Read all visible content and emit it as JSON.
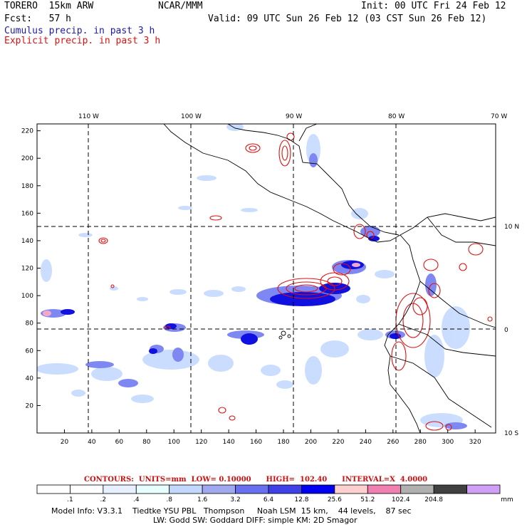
{
  "header": {
    "model": "TORERO  15km ARW",
    "center": "NCAR/MMM",
    "init": "Init: 00 UTC Fri 24 Feb 12",
    "fcst": "Fcst:   57 h",
    "valid": "Valid: 09 UTC Sun 26 Feb 12 (03 CST Sun 26 Feb 12)",
    "cumulus_label": "Cumulus precip. in past 3 h",
    "explicit_label": "Explicit precip. in past 3 h"
  },
  "map": {
    "lon_labels": [
      "110 W",
      "100 W",
      "90 W",
      "80 W",
      "70 W"
    ],
    "lat_labels": [
      "10 N",
      "0",
      "10 S"
    ],
    "x_ticks": [
      "20",
      "40",
      "60",
      "80",
      "100",
      "120",
      "140",
      "160",
      "180",
      "200",
      "220",
      "240",
      "260",
      "280",
      "300",
      "320"
    ],
    "y_ticks": [
      "20",
      "40",
      "60",
      "80",
      "100",
      "120",
      "140",
      "160",
      "180",
      "200",
      "220"
    ],
    "x_range": [
      0,
      335
    ],
    "y_range": [
      0,
      225
    ],
    "gridlines": "dashed lat/lon every 10 degrees"
  },
  "contours": {
    "text": "CONTOURS:  UNITS=mm  LOW= 0.10000      HIGH=  102.40      INTERVAL=X  4.0000"
  },
  "colorbar": {
    "labels": [
      ".1",
      ".2",
      ".4",
      ".8",
      "1.6",
      "3.2",
      "6.4",
      "12.8",
      "25.6",
      "51.2",
      "102.4",
      "204.8"
    ],
    "unit": "mm",
    "colors": [
      "#ffffff",
      "#ffffff",
      "#e8f0ff",
      "#e8ffff",
      "#c4d8ff",
      "#a0a8f0",
      "#6870f0",
      "#4040e8",
      "#0000f0",
      "#ffd0d0",
      "#f080b0",
      "#b0b0b0",
      "#404040",
      "#d0a0f8"
    ]
  },
  "footer": {
    "line1": "Model Info: V3.3.1    Tiedtke YSU PBL   Thompson     Noah LSM  15 km,    44 levels,    87 sec",
    "line2": "LW: Godd SW: Goddard DIFF: simple KM: 2D Smagor"
  }
}
